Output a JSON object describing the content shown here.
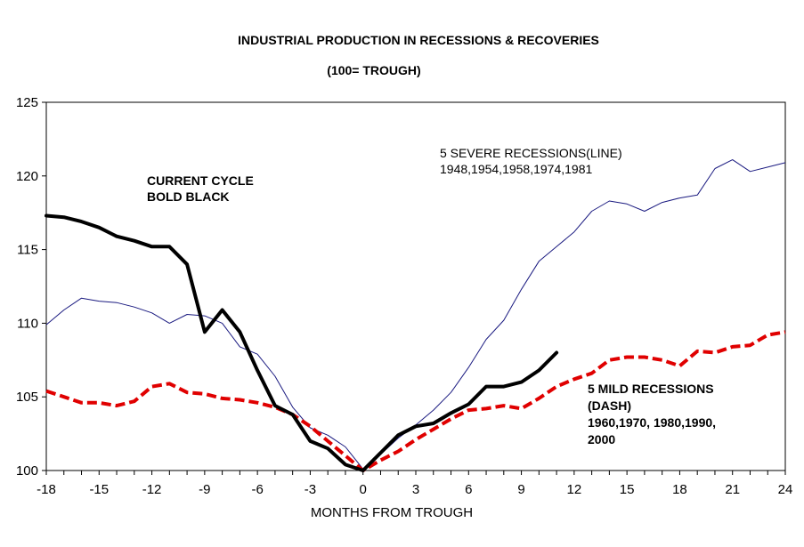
{
  "chart_data": {
    "type": "line",
    "title": "INDUSTRIAL PRODUCTION IN RECESSIONS & RECOVERIES",
    "subtitle": "(100= TROUGH)",
    "xlabel": "MONTHS FROM TROUGH",
    "ylabel": "",
    "xlim": [
      -18,
      24
    ],
    "ylim": [
      100,
      125
    ],
    "x_ticks": [
      -18,
      -15,
      -12,
      -9,
      -6,
      -3,
      0,
      3,
      6,
      9,
      12,
      15,
      18,
      21,
      24
    ],
    "y_ticks": [
      100,
      105,
      110,
      115,
      120,
      125
    ],
    "grid": false,
    "series": [
      {
        "name": "CURRENT CYCLE",
        "style": "bold",
        "color": "#000000",
        "x": [
          -18,
          -17,
          -16,
          -15,
          -14,
          -13,
          -12,
          -11,
          -10,
          -9,
          -8,
          -7,
          -6,
          -5,
          -4,
          -3,
          -2,
          -1,
          0,
          1,
          2,
          3,
          4,
          5,
          6,
          7,
          8,
          9,
          10,
          11
        ],
        "y": [
          117.3,
          117.2,
          116.9,
          116.5,
          115.9,
          115.6,
          115.2,
          115.2,
          114.0,
          109.4,
          110.9,
          109.4,
          106.8,
          104.4,
          103.8,
          102.0,
          101.5,
          100.4,
          100.0,
          101.2,
          102.4,
          103.0,
          103.2,
          103.9,
          104.5,
          105.7,
          105.7,
          106.0,
          106.8,
          108.0
        ]
      },
      {
        "name": "5 SEVERE RECESSIONS",
        "style": "line",
        "color": "#1a1a80",
        "x": [
          -18,
          -17,
          -16,
          -15,
          -14,
          -13,
          -12,
          -11,
          -10,
          -9,
          -8,
          -7,
          -6,
          -5,
          -4,
          -3,
          -2,
          -1,
          0,
          1,
          2,
          3,
          4,
          5,
          6,
          7,
          8,
          9,
          10,
          11,
          12,
          13,
          14,
          15,
          16,
          17,
          18,
          19,
          20,
          21,
          22,
          23,
          24
        ],
        "y": [
          109.9,
          110.9,
          111.7,
          111.5,
          111.4,
          111.1,
          110.7,
          110.0,
          110.6,
          110.5,
          110.0,
          108.4,
          107.9,
          106.4,
          104.3,
          102.9,
          102.4,
          101.6,
          100.1,
          101.1,
          102.2,
          103.1,
          104.1,
          105.3,
          107.0,
          108.9,
          110.2,
          112.3,
          114.2,
          115.2,
          116.2,
          117.6,
          118.3,
          118.1,
          117.6,
          118.2,
          118.5,
          118.7,
          120.5,
          121.1,
          120.3,
          120.6,
          120.9
        ]
      },
      {
        "name": "5 MILD RECESSIONS",
        "style": "dash",
        "color": "#e00000",
        "x": [
          -18,
          -17,
          -16,
          -15,
          -14,
          -13,
          -12,
          -11,
          -10,
          -9,
          -8,
          -7,
          -6,
          -5,
          -4,
          -3,
          -2,
          -1,
          0,
          1,
          2,
          3,
          4,
          5,
          6,
          7,
          8,
          9,
          10,
          11,
          12,
          13,
          14,
          15,
          16,
          17,
          18,
          19,
          20,
          21,
          22,
          23,
          24
        ],
        "y": [
          105.4,
          105.0,
          104.6,
          104.6,
          104.4,
          104.7,
          105.7,
          105.9,
          105.3,
          105.2,
          104.9,
          104.8,
          104.6,
          104.3,
          103.8,
          103.0,
          102.0,
          101.0,
          100.0,
          100.7,
          101.3,
          102.1,
          102.8,
          103.5,
          104.1,
          104.2,
          104.4,
          104.2,
          104.9,
          105.7,
          106.2,
          106.6,
          107.5,
          107.7,
          107.7,
          107.5,
          107.1,
          108.1,
          108.0,
          108.4,
          108.5,
          109.2,
          109.4
        ]
      }
    ],
    "annotations": {
      "current_line1": "CURRENT CYCLE",
      "current_line2": "BOLD BLACK",
      "severe_line1": "5 SEVERE RECESSIONS(LINE)",
      "severe_line2": "1948,1954,1958,1974,1981",
      "mild_line1": "5 MILD  RECESSIONS",
      "mild_line2": "(DASH)",
      "mild_line3": "1960,1970, 1980,1990,",
      "mild_line4": "2000"
    }
  }
}
